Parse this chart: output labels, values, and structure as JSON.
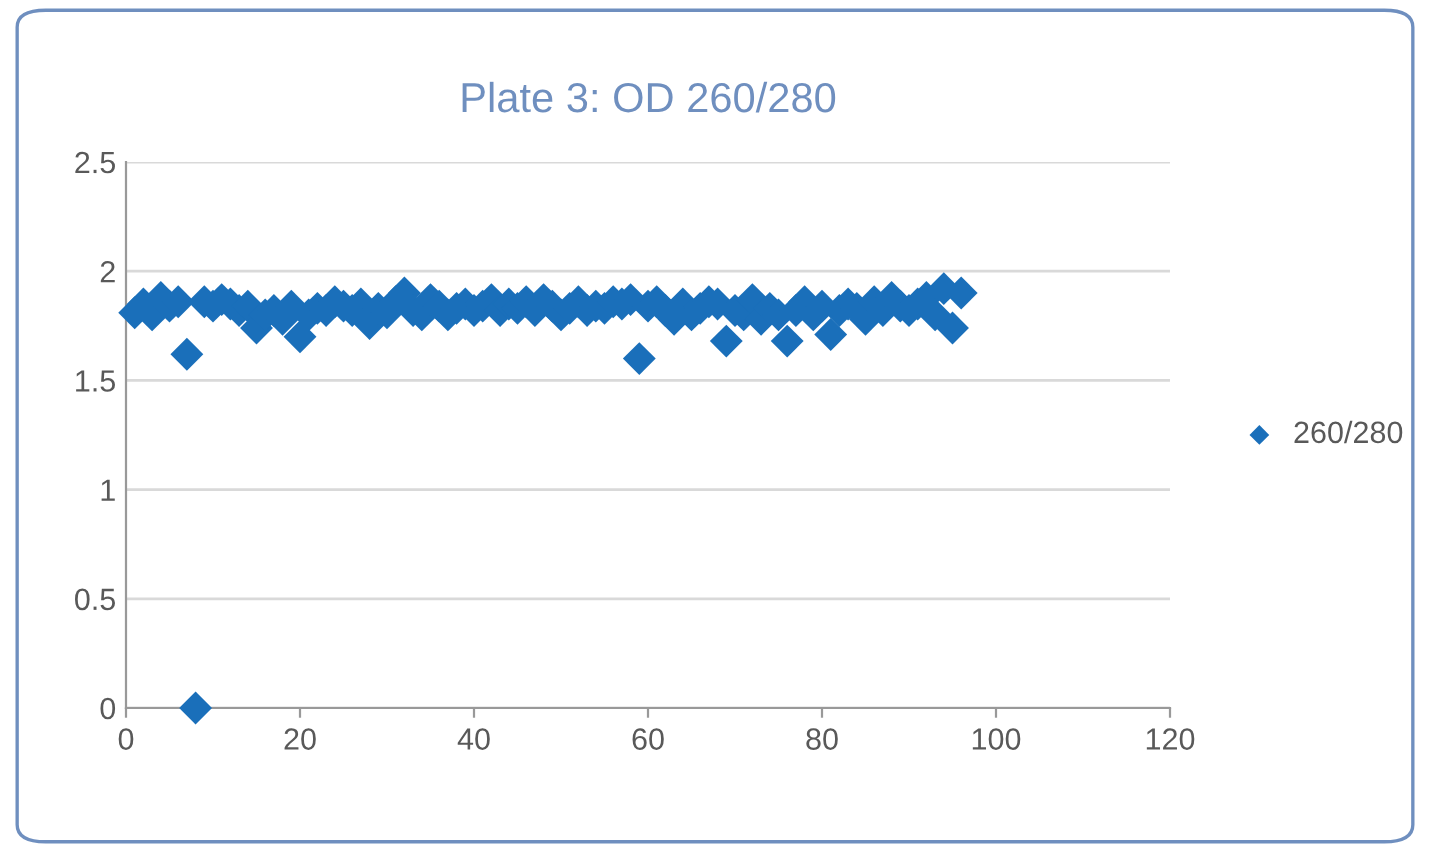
{
  "chart_data": {
    "type": "scatter",
    "title": "Plate 3: OD 260/280",
    "x": [
      1,
      2,
      3,
      4,
      5,
      6,
      7,
      8,
      9,
      10,
      11,
      12,
      13,
      14,
      15,
      16,
      17,
      18,
      19,
      20,
      21,
      22,
      23,
      24,
      25,
      26,
      27,
      28,
      29,
      30,
      31,
      32,
      33,
      34,
      35,
      36,
      37,
      38,
      39,
      40,
      41,
      42,
      43,
      44,
      45,
      46,
      47,
      48,
      49,
      50,
      51,
      52,
      53,
      54,
      55,
      56,
      57,
      58,
      59,
      60,
      61,
      62,
      63,
      64,
      65,
      66,
      67,
      68,
      69,
      70,
      71,
      72,
      73,
      74,
      75,
      76,
      77,
      78,
      79,
      80,
      81,
      82,
      83,
      84,
      85,
      86,
      87,
      88,
      89,
      90,
      91,
      92,
      93,
      94,
      95,
      96
    ],
    "series": [
      {
        "name": "260/280",
        "color": "#1a6fba",
        "values": [
          1.81,
          1.85,
          1.8,
          1.88,
          1.84,
          1.86,
          1.62,
          0,
          1.86,
          1.84,
          1.87,
          1.85,
          1.82,
          1.84,
          1.74,
          1.8,
          1.82,
          1.78,
          1.84,
          1.7,
          1.8,
          1.83,
          1.82,
          1.86,
          1.84,
          1.82,
          1.85,
          1.76,
          1.83,
          1.81,
          1.86,
          1.9,
          1.82,
          1.8,
          1.87,
          1.84,
          1.8,
          1.83,
          1.85,
          1.82,
          1.84,
          1.87,
          1.82,
          1.85,
          1.83,
          1.86,
          1.82,
          1.87,
          1.84,
          1.8,
          1.83,
          1.86,
          1.82,
          1.84,
          1.83,
          1.86,
          1.85,
          1.87,
          1.6,
          1.84,
          1.86,
          1.82,
          1.78,
          1.85,
          1.8,
          1.83,
          1.86,
          1.85,
          1.68,
          1.82,
          1.8,
          1.87,
          1.78,
          1.83,
          1.8,
          1.68,
          1.82,
          1.86,
          1.8,
          1.84,
          1.71,
          1.82,
          1.85,
          1.83,
          1.78,
          1.86,
          1.82,
          1.88,
          1.84,
          1.82,
          1.85,
          1.88,
          1.8,
          1.92,
          1.74,
          1.9
        ]
      }
    ],
    "xlim": [
      0,
      120
    ],
    "xticks": [
      0,
      20,
      40,
      60,
      80,
      100,
      120
    ],
    "ylim": [
      0,
      2.5
    ],
    "yticks": [
      0,
      0.5,
      1,
      1.5,
      2,
      2.5
    ],
    "grid": "y",
    "legend": "right",
    "marker": "diamond"
  }
}
